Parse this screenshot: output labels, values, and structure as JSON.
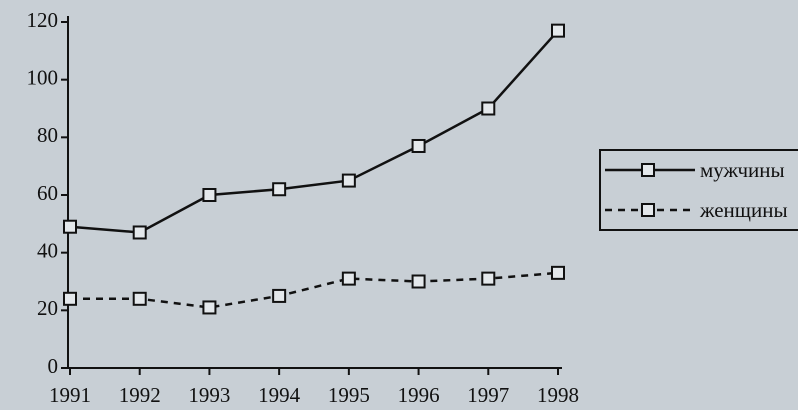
{
  "chart_data": {
    "type": "line",
    "x": [
      1991,
      1992,
      1993,
      1994,
      1995,
      1996,
      1997,
      1998
    ],
    "series": [
      {
        "name": "мужчины",
        "color": "#111111",
        "line_style": "solid",
        "values": [
          49,
          47,
          60,
          62,
          65,
          77,
          90,
          117
        ]
      },
      {
        "name": "женщины",
        "color": "#111111",
        "line_style": "dashed",
        "values": [
          24,
          24,
          21,
          25,
          31,
          30,
          31,
          33
        ]
      }
    ],
    "xlim": [
      1991,
      1998
    ],
    "xticks": [
      1991,
      1992,
      1993,
      1994,
      1995,
      1996,
      1997,
      1998
    ],
    "ylim": [
      0,
      120
    ],
    "yticks": [
      0,
      20,
      40,
      60,
      80,
      100,
      120
    ],
    "marker": "square",
    "legend": "right"
  }
}
